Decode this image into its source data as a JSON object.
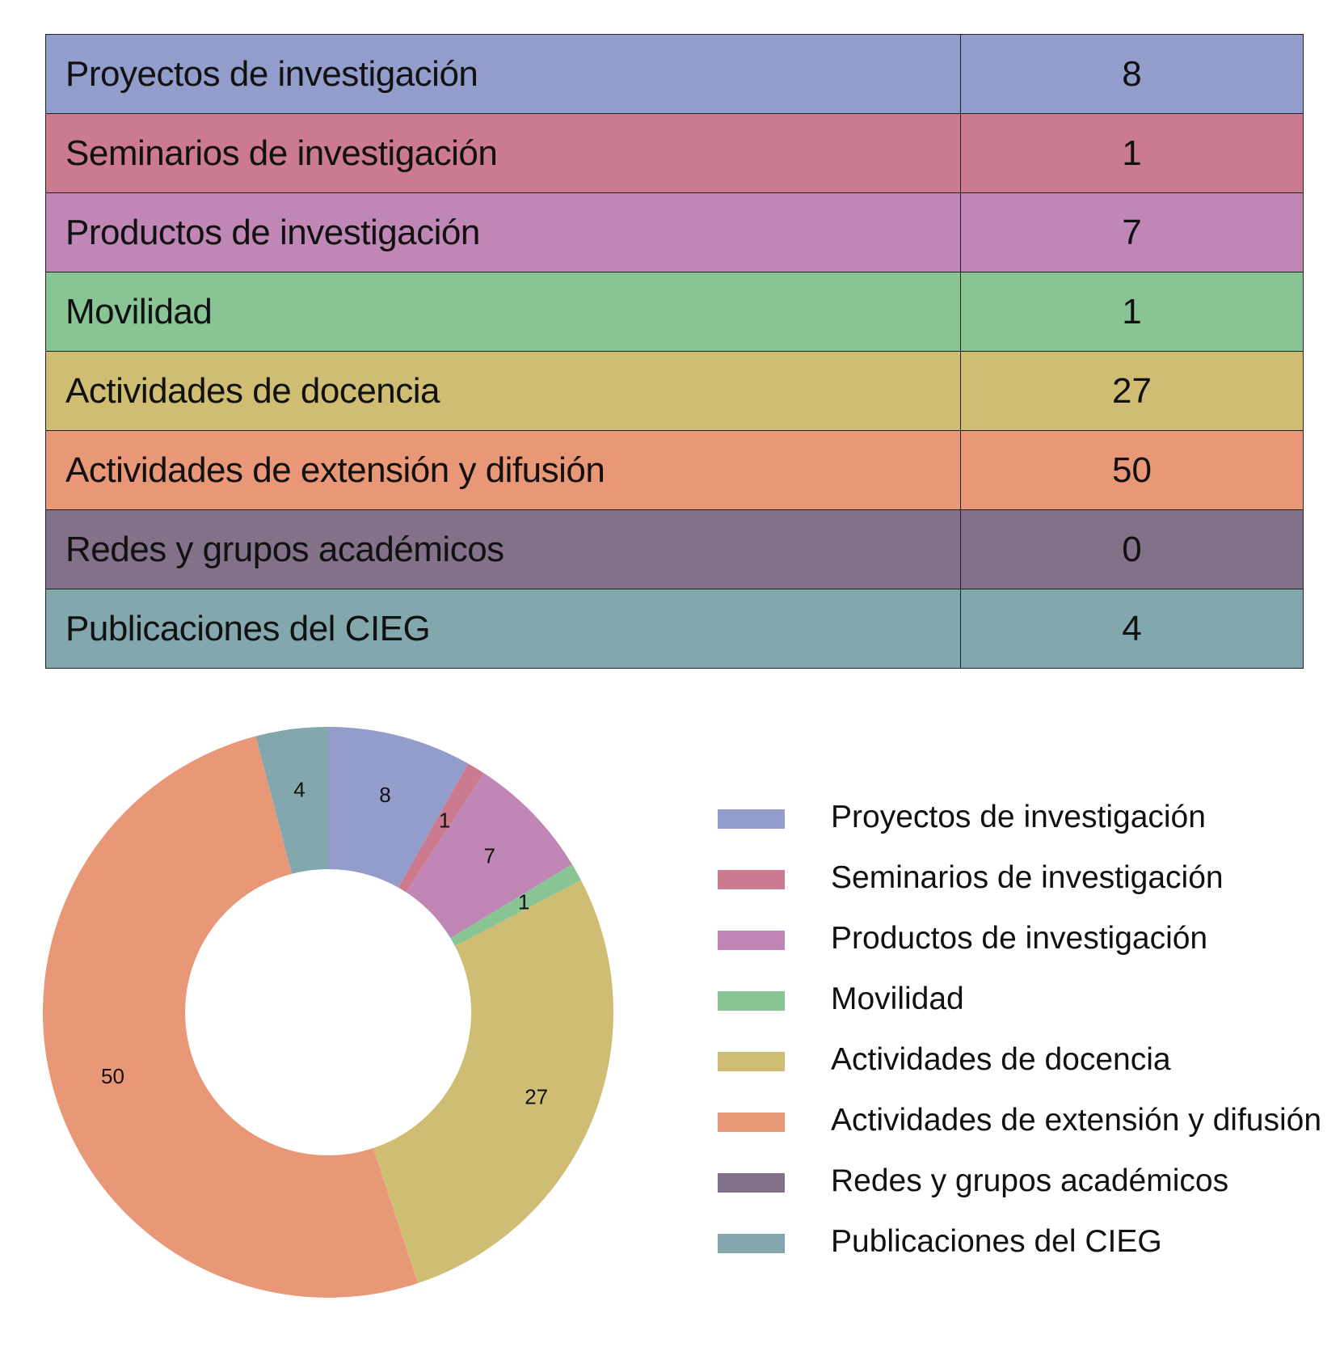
{
  "table": {
    "rows": [
      {
        "label": "Proyectos de investigación",
        "value": "8",
        "color": "#929dcb"
      },
      {
        "label": "Seminarios de investigación",
        "value": "1",
        "color": "#cb7a8f"
      },
      {
        "label": "Productos de investigación",
        "value": "7",
        "color": "#c086b5"
      },
      {
        "label": "Movilidad",
        "value": "1",
        "color": "#89c495"
      },
      {
        "label": "Actividades de docencia",
        "value": "27",
        "color": "#cfbd73"
      },
      {
        "label": "Actividades de extensión y difusión",
        "value": "50",
        "color": "#e99877"
      },
      {
        "label": "Redes y grupos académicos",
        "value": "0",
        "color": "#827189"
      },
      {
        "label": "Publicaciones del CIEG",
        "value": "4",
        "color": "#82a8ae"
      }
    ]
  },
  "chart_data": {
    "type": "pie",
    "donut": true,
    "categories": [
      "Proyectos de investigación",
      "Seminarios de investigación",
      "Productos de investigación",
      "Movilidad",
      "Actividades de docencia",
      "Actividades de extensión y difusión",
      "Redes y grupos académicos",
      "Publicaciones del CIEG"
    ],
    "values": [
      8,
      1,
      7,
      1,
      27,
      50,
      0,
      4
    ],
    "colors": [
      "#929dcb",
      "#cb7a8f",
      "#c086b5",
      "#89c495",
      "#cfbd73",
      "#e99877",
      "#827189",
      "#82a8ae"
    ],
    "data_labels": [
      "8",
      "1",
      "7",
      "1",
      "27",
      "50",
      "",
      "4"
    ],
    "legend_position": "right"
  }
}
